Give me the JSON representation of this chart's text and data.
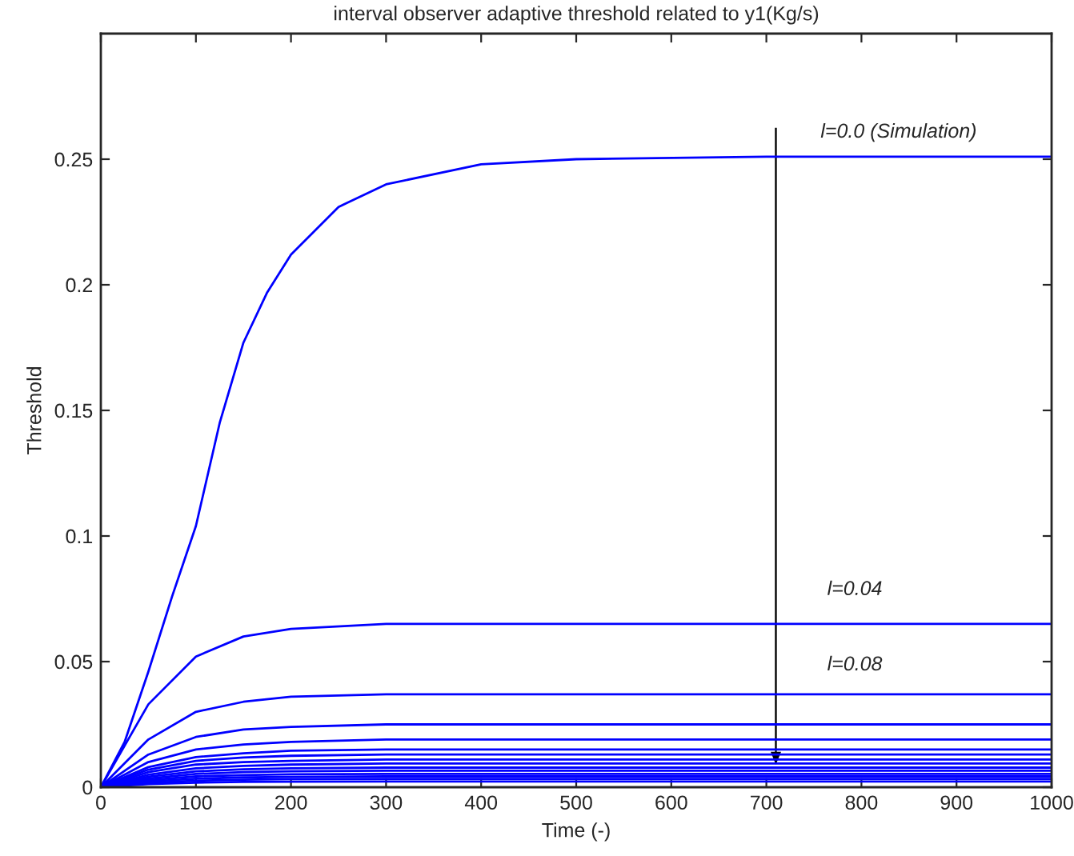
{
  "chart_data": {
    "type": "line",
    "title": "interval observer adaptive threshold related to y1(Kg/s)",
    "xlabel": "Time (-)",
    "ylabel": "Threshold",
    "x": [
      0,
      50,
      100,
      150,
      200,
      300,
      1000
    ],
    "series": [
      {
        "color": "#0000ff",
        "x": [
          0,
          25,
          50,
          75,
          100,
          125,
          150,
          175,
          200,
          250,
          300,
          400,
          500,
          700,
          1000
        ],
        "values": [
          0,
          0.018,
          0.046,
          0.076,
          0.104,
          0.145,
          0.177,
          0.197,
          0.212,
          0.231,
          0.24,
          0.248,
          0.25,
          0.251,
          0.251
        ]
      },
      {
        "color": "#0000ff",
        "values": [
          0,
          0.033,
          0.052,
          0.06,
          0.063,
          0.065,
          0.065
        ]
      },
      {
        "color": "#0000ff",
        "values": [
          0,
          0.019,
          0.03,
          0.034,
          0.036,
          0.037,
          0.037
        ]
      },
      {
        "color": "#0000ff",
        "values": [
          0,
          0.013,
          0.02,
          0.023,
          0.024,
          0.025,
          0.025
        ]
      },
      {
        "color": "#0000ff",
        "values": [
          0,
          0.01,
          0.015,
          0.017,
          0.018,
          0.019,
          0.019
        ]
      },
      {
        "color": "#0000ff",
        "values": [
          0,
          0.008,
          0.012,
          0.0135,
          0.0145,
          0.015,
          0.015
        ]
      },
      {
        "color": "#0000ff",
        "values": [
          0,
          0.007,
          0.0105,
          0.0118,
          0.0125,
          0.013,
          0.013
        ]
      },
      {
        "color": "#0000ff",
        "values": [
          0,
          0.006,
          0.009,
          0.01,
          0.0105,
          0.011,
          0.011
        ]
      },
      {
        "color": "#0000ff",
        "values": [
          0,
          0.005,
          0.0075,
          0.0085,
          0.009,
          0.0094,
          0.0094
        ]
      },
      {
        "color": "#0000ff",
        "values": [
          0,
          0.0042,
          0.0063,
          0.0071,
          0.0075,
          0.0078,
          0.0078
        ]
      },
      {
        "color": "#0000ff",
        "values": [
          0,
          0.0035,
          0.0053,
          0.006,
          0.0063,
          0.0066,
          0.0066
        ]
      },
      {
        "color": "#0000ff",
        "values": [
          0,
          0.0028,
          0.0043,
          0.0048,
          0.0051,
          0.0053,
          0.0053
        ]
      },
      {
        "color": "#0000ff",
        "values": [
          0,
          0.0023,
          0.0034,
          0.0039,
          0.0041,
          0.0043,
          0.0043
        ]
      },
      {
        "color": "#0000ff",
        "values": [
          0,
          0.0017,
          0.0026,
          0.003,
          0.0032,
          0.0033,
          0.0033
        ]
      },
      {
        "color": "#0000ff",
        "values": [
          0,
          0.0012,
          0.0018,
          0.0021,
          0.0022,
          0.0023,
          0.0023
        ]
      }
    ],
    "annotations": [
      "l=0.0 (Simulation)",
      "l=0.04",
      "l=0.08"
    ],
    "xlim": [
      0,
      1000
    ],
    "ylim": [
      0,
      0.3
    ],
    "xticks": [
      0,
      100,
      200,
      300,
      400,
      500,
      600,
      700,
      800,
      900,
      1000
    ],
    "yticks": [
      0,
      0.05,
      0.1,
      0.15,
      0.2,
      0.25
    ],
    "grid": false,
    "legend": false
  }
}
